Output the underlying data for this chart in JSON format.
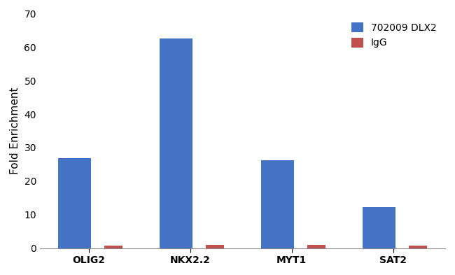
{
  "categories": [
    "OLIG2",
    "NKX2.2",
    "MYT1",
    "SAT2"
  ],
  "dlx2_values": [
    26.8,
    62.5,
    26.2,
    12.2
  ],
  "igg_values": [
    0.8,
    0.9,
    0.9,
    0.8
  ],
  "dlx2_color": "#4472C4",
  "igg_color": "#C0504D",
  "dlx2_label": "702009 DLX2",
  "igg_label": "IgG",
  "ylabel": "Fold Enrichment",
  "ylim": [
    0,
    70
  ],
  "yticks": [
    0,
    10,
    20,
    30,
    40,
    50,
    60,
    70
  ],
  "dlx2_bar_width": 0.32,
  "igg_bar_width": 0.18,
  "background_color": "#ffffff",
  "legend_fontsize": 10,
  "tick_fontsize": 10,
  "label_fontsize": 11
}
